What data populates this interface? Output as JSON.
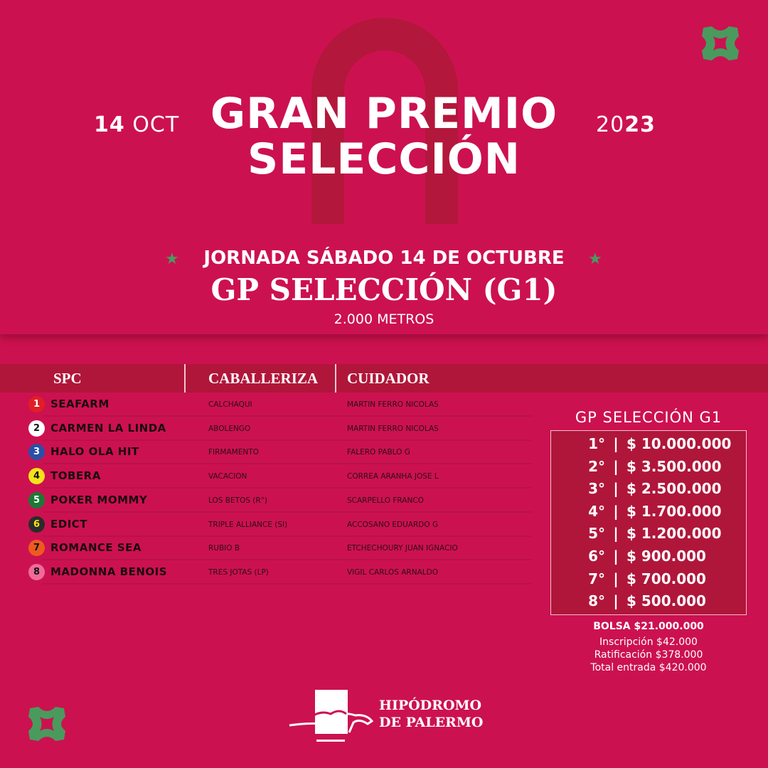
{
  "header": {
    "date_day": "14",
    "date_month": "OCT",
    "year_a": "20",
    "year_b": "23",
    "title_line1": "GRAN PREMIO",
    "title_line2": "SELECCIÓN"
  },
  "race": {
    "jornada": "JORNADA SÁBADO 14 DE OCTUBRE",
    "name": "GP SELECCIÓN (G1)",
    "distance": "2.000 METROS"
  },
  "table": {
    "columns": [
      "SPC",
      "CABALLERIZA",
      "CUIDADOR"
    ],
    "rows": [
      {
        "num": "1",
        "name": "SEAFARM",
        "caballeriza": "CALCHAQUI",
        "cuidador": "MARTIN FERRO NICOLAS",
        "color": "#e01e26",
        "text": "#ffffff"
      },
      {
        "num": "2",
        "name": "CARMEN LA LINDA",
        "caballeriza": "ABOLENGO",
        "cuidador": "MARTIN FERRO NICOLAS",
        "color": "#ffffff",
        "text": "#111111"
      },
      {
        "num": "3",
        "name": "HALO OLA HIT",
        "caballeriza": "FIRMAMENTO",
        "cuidador": "FALERO PABLO G",
        "color": "#2a4fa8",
        "text": "#ffffff"
      },
      {
        "num": "4",
        "name": "TOBERA",
        "caballeriza": "VACACION",
        "cuidador": "CORREA ARANHA JOSE L",
        "color": "#f5e31a",
        "text": "#111111"
      },
      {
        "num": "5",
        "name": "POKER MOMMY",
        "caballeriza": "LOS BETOS (R°)",
        "cuidador": "SCARPELLO FRANCO",
        "color": "#1a7a35",
        "text": "#ffffff"
      },
      {
        "num": "6",
        "name": "EDICT",
        "caballeriza": "TRIPLE ALLIANCE (SI)",
        "cuidador": "ACCOSANO EDUARDO G",
        "color": "#2b2b2b",
        "text": "#f5e31a"
      },
      {
        "num": "7",
        "name": "ROMANCE SEA",
        "caballeriza": "RUBIO B",
        "cuidador": "ETCHECHOURY JUAN IGNACIO",
        "color": "#ee5a1e",
        "text": "#111111"
      },
      {
        "num": "8",
        "name": "MADONNA BENOIS",
        "caballeriza": "TRES JOTAS (LP)",
        "cuidador": "VIGIL CARLOS ARNALDO",
        "color": "#ef6a9a",
        "text": "#111111"
      }
    ]
  },
  "prizes": {
    "title": "GP SELECCIÓN G1",
    "items": [
      {
        "place": "1°",
        "amount": "$ 10.000.000"
      },
      {
        "place": "2°",
        "amount": "$ 3.500.000"
      },
      {
        "place": "3°",
        "amount": "$ 2.500.000"
      },
      {
        "place": "4°",
        "amount": "$ 1.700.000"
      },
      {
        "place": "5°",
        "amount": "$ 1.200.000"
      },
      {
        "place": "6°",
        "amount": "$ 900.000"
      },
      {
        "place": "7°",
        "amount": "$ 700.000"
      },
      {
        "place": "8°",
        "amount": "$ 500.000"
      }
    ],
    "separator": "|",
    "bolsa": "BOLSA $21.000.000",
    "inscripcion": "Inscripción $42.000",
    "ratificacion": "Ratificación $378.000",
    "total": "Total entrada $420.000"
  },
  "logo": {
    "line1": "HIPÓDROMO",
    "line2": "DE PALERMO"
  },
  "colors": {
    "background": "#cc1150",
    "band": "#b0163a",
    "accent_green": "#4a9a5e"
  }
}
